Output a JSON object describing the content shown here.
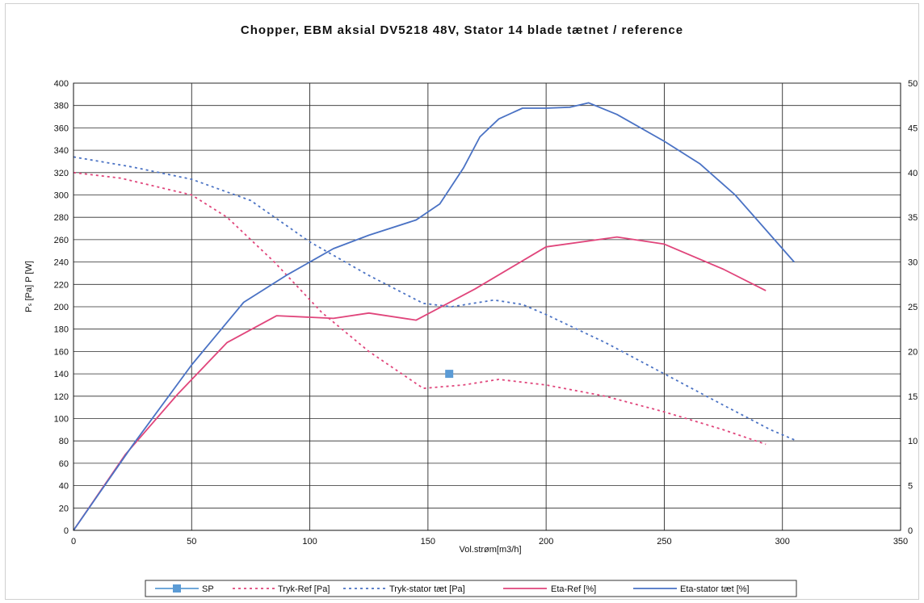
{
  "chart_data": {
    "type": "line",
    "title": "Chopper, EBM aksial DV5218 48V, Stator 14 blade tætnet / reference",
    "xlabel": "Vol.strøm[m3/h]",
    "ylabel_left": "Pₛ [Pa] P [W]",
    "ylabel_right": "",
    "xlim": [
      0,
      350
    ],
    "ylim_left": [
      0,
      400
    ],
    "ylim_right": [
      0,
      50
    ],
    "x_ticks": [
      0,
      50,
      100,
      150,
      200,
      250,
      300,
      350
    ],
    "y_ticks_left": [
      0,
      20,
      40,
      60,
      80,
      100,
      120,
      140,
      160,
      180,
      200,
      220,
      240,
      260,
      280,
      300,
      320,
      340,
      360,
      380,
      400
    ],
    "y_ticks_right": [
      0,
      5,
      10,
      15,
      20,
      25,
      30,
      35,
      40,
      45,
      50
    ],
    "grid": true,
    "legend_position": "bottom",
    "series": [
      {
        "name": "SP",
        "axis": "left",
        "color": "#5b9bd5",
        "style": "marker",
        "points": [
          [
            159,
            140
          ]
        ]
      },
      {
        "name": "Tryk-Ref [Pa]",
        "axis": "left",
        "color": "#e0457b",
        "style": "dotted",
        "points": [
          [
            0,
            320
          ],
          [
            20,
            315
          ],
          [
            42,
            304
          ],
          [
            50,
            300
          ],
          [
            65,
            280
          ],
          [
            85,
            240
          ],
          [
            105,
            195
          ],
          [
            125,
            160
          ],
          [
            148,
            127
          ],
          [
            165,
            130
          ],
          [
            180,
            135
          ],
          [
            200,
            130
          ],
          [
            225,
            120
          ],
          [
            250,
            106
          ],
          [
            275,
            90
          ],
          [
            293,
            77
          ]
        ]
      },
      {
        "name": "Tryk-stator tæt [Pa]",
        "axis": "left",
        "color": "#4a72c4",
        "style": "dotted",
        "points": [
          [
            0,
            334
          ],
          [
            25,
            325
          ],
          [
            50,
            314
          ],
          [
            75,
            295
          ],
          [
            100,
            258
          ],
          [
            125,
            228
          ],
          [
            148,
            203
          ],
          [
            160,
            200
          ],
          [
            178,
            206
          ],
          [
            190,
            202
          ],
          [
            200,
            193
          ],
          [
            225,
            168
          ],
          [
            250,
            140
          ],
          [
            275,
            112
          ],
          [
            295,
            90
          ],
          [
            305,
            81
          ]
        ]
      },
      {
        "name": "Eta-Ref [%]",
        "axis": "right",
        "color": "#e0457b",
        "style": "solid",
        "points": [
          [
            0,
            0
          ],
          [
            22,
            8.5
          ],
          [
            44,
            15.2
          ],
          [
            65,
            21.0
          ],
          [
            86,
            24.0
          ],
          [
            110,
            23.7
          ],
          [
            125,
            24.3
          ],
          [
            145,
            23.5
          ],
          [
            170,
            27.0
          ],
          [
            200,
            31.7
          ],
          [
            230,
            32.8
          ],
          [
            250,
            32.0
          ],
          [
            275,
            29.2
          ],
          [
            293,
            26.8
          ]
        ]
      },
      {
        "name": "Eta-stator tæt [%]",
        "axis": "right",
        "color": "#4a72c4",
        "style": "solid",
        "points": [
          [
            0,
            0
          ],
          [
            25,
            9.5
          ],
          [
            50,
            18.5
          ],
          [
            72,
            25.5
          ],
          [
            90,
            28.5
          ],
          [
            110,
            31.5
          ],
          [
            125,
            33.0
          ],
          [
            145,
            34.7
          ],
          [
            155,
            36.5
          ],
          [
            165,
            40.5
          ],
          [
            172,
            44.0
          ],
          [
            180,
            46.0
          ],
          [
            190,
            47.2
          ],
          [
            200,
            47.2
          ],
          [
            210,
            47.3
          ],
          [
            218,
            47.8
          ],
          [
            230,
            46.5
          ],
          [
            250,
            43.5
          ],
          [
            265,
            41.0
          ],
          [
            280,
            37.5
          ],
          [
            305,
            30.0
          ]
        ]
      }
    ]
  }
}
